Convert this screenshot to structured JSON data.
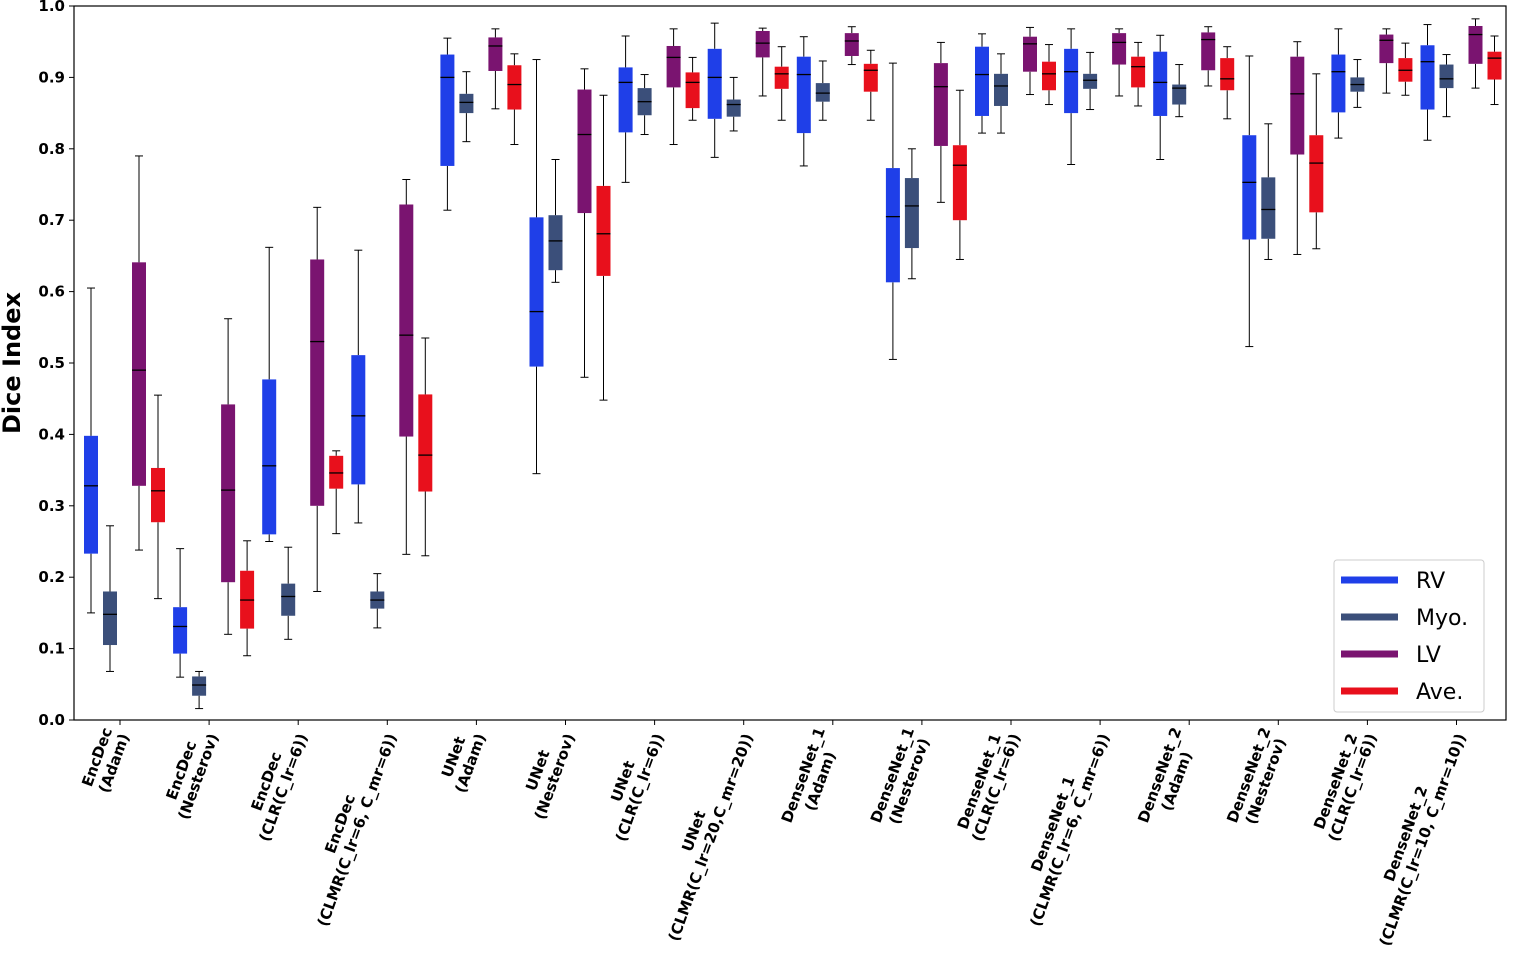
{
  "chart_data": {
    "type": "box",
    "ylabel": "Dice Index",
    "xlabel": "",
    "ylim": [
      0.0,
      1.0
    ],
    "yticks": [
      "0.0",
      "0.1",
      "0.2",
      "0.3",
      "0.4",
      "0.5",
      "0.6",
      "0.7",
      "0.8",
      "0.9",
      "1.0"
    ],
    "grid": false,
    "legend_position": "bottom-right",
    "categories": [
      [
        "EncDec",
        "(Adam)"
      ],
      [
        "EncDec",
        "(Nesterov)"
      ],
      [
        "EncDec",
        "(CLR(C_lr=6))"
      ],
      [
        "EncDec",
        "(CLMR(C_lr=6, C_mr=6))"
      ],
      [
        "UNet",
        "(Adam)"
      ],
      [
        "UNet",
        "(Nesterov)"
      ],
      [
        "UNet",
        "(CLR(C_lr=6))"
      ],
      [
        "UNet",
        "(CLMR(C_lr=20,C_mr=20))"
      ],
      [
        "DenseNet_1",
        "(Adam)"
      ],
      [
        "DenseNet_1",
        "(Nesterov)"
      ],
      [
        "DenseNet_1",
        "(CLR(C_lr=6))"
      ],
      [
        "DenseNet_1",
        "(CLMR(C_lr=6, C_mr=6))"
      ],
      [
        "DenseNet_2",
        "(Adam)"
      ],
      [
        "DenseNet_2",
        "(Nesterov)"
      ],
      [
        "DenseNet_2",
        "(CLR(C_lr=6))"
      ],
      [
        "DenseNet_2",
        "(CLMR(C_lr=10, C_mr=10))"
      ]
    ],
    "series": [
      {
        "name": "RV",
        "color": "#1f3fe8",
        "boxes": [
          {
            "min": 0.15,
            "q1": 0.233,
            "median": 0.328,
            "q3": 0.398,
            "max": 0.605
          },
          {
            "min": 0.06,
            "q1": 0.093,
            "median": 0.131,
            "q3": 0.158,
            "max": 0.24
          },
          {
            "min": 0.25,
            "q1": 0.26,
            "median": 0.356,
            "q3": 0.477,
            "max": 0.662
          },
          {
            "min": 0.276,
            "q1": 0.33,
            "median": 0.426,
            "q3": 0.511,
            "max": 0.658
          },
          {
            "min": 0.714,
            "q1": 0.776,
            "median": 0.9,
            "q3": 0.932,
            "max": 0.955
          },
          {
            "min": 0.345,
            "q1": 0.495,
            "median": 0.572,
            "q3": 0.704,
            "max": 0.925
          },
          {
            "min": 0.753,
            "q1": 0.823,
            "median": 0.893,
            "q3": 0.914,
            "max": 0.958
          },
          {
            "min": 0.788,
            "q1": 0.842,
            "median": 0.9,
            "q3": 0.94,
            "max": 0.976
          },
          {
            "min": 0.776,
            "q1": 0.822,
            "median": 0.904,
            "q3": 0.929,
            "max": 0.957
          },
          {
            "min": 0.505,
            "q1": 0.613,
            "median": 0.705,
            "q3": 0.773,
            "max": 0.92
          },
          {
            "min": 0.822,
            "q1": 0.846,
            "median": 0.904,
            "q3": 0.943,
            "max": 0.961
          },
          {
            "min": 0.778,
            "q1": 0.85,
            "median": 0.908,
            "q3": 0.94,
            "max": 0.968
          },
          {
            "min": 0.785,
            "q1": 0.846,
            "median": 0.893,
            "q3": 0.936,
            "max": 0.959
          },
          {
            "min": 0.523,
            "q1": 0.673,
            "median": 0.753,
            "q3": 0.819,
            "max": 0.93
          },
          {
            "min": 0.815,
            "q1": 0.851,
            "median": 0.908,
            "q3": 0.932,
            "max": 0.968
          },
          {
            "min": 0.812,
            "q1": 0.855,
            "median": 0.922,
            "q3": 0.945,
            "max": 0.974
          }
        ]
      },
      {
        "name": "Myo.",
        "color": "#3b4f7a",
        "boxes": [
          {
            "min": 0.068,
            "q1": 0.105,
            "median": 0.148,
            "q3": 0.18,
            "max": 0.272
          },
          {
            "min": 0.016,
            "q1": 0.034,
            "median": 0.049,
            "q3": 0.061,
            "max": 0.068
          },
          {
            "min": 0.113,
            "q1": 0.146,
            "median": 0.173,
            "q3": 0.191,
            "max": 0.242
          },
          {
            "min": 0.129,
            "q1": 0.156,
            "median": 0.168,
            "q3": 0.18,
            "max": 0.205
          },
          {
            "min": 0.81,
            "q1": 0.85,
            "median": 0.865,
            "q3": 0.877,
            "max": 0.908
          },
          {
            "min": 0.613,
            "q1": 0.63,
            "median": 0.671,
            "q3": 0.707,
            "max": 0.785
          },
          {
            "min": 0.82,
            "q1": 0.847,
            "median": 0.866,
            "q3": 0.885,
            "max": 0.904
          },
          {
            "min": 0.825,
            "q1": 0.845,
            "median": 0.862,
            "q3": 0.869,
            "max": 0.9
          },
          {
            "min": 0.84,
            "q1": 0.866,
            "median": 0.878,
            "q3": 0.892,
            "max": 0.923
          },
          {
            "min": 0.618,
            "q1": 0.661,
            "median": 0.72,
            "q3": 0.759,
            "max": 0.8
          },
          {
            "min": 0.822,
            "q1": 0.86,
            "median": 0.888,
            "q3": 0.905,
            "max": 0.933
          },
          {
            "min": 0.855,
            "q1": 0.884,
            "median": 0.896,
            "q3": 0.905,
            "max": 0.935
          },
          {
            "min": 0.845,
            "q1": 0.862,
            "median": 0.885,
            "q3": 0.89,
            "max": 0.918
          },
          {
            "min": 0.645,
            "q1": 0.674,
            "median": 0.715,
            "q3": 0.76,
            "max": 0.835
          },
          {
            "min": 0.858,
            "q1": 0.88,
            "median": 0.89,
            "q3": 0.9,
            "max": 0.925
          },
          {
            "min": 0.845,
            "q1": 0.885,
            "median": 0.898,
            "q3": 0.918,
            "max": 0.932
          }
        ]
      },
      {
        "name": "LV",
        "color": "#7a1470",
        "boxes": [
          {
            "min": 0.238,
            "q1": 0.328,
            "median": 0.49,
            "q3": 0.641,
            "max": 0.79
          },
          {
            "min": 0.12,
            "q1": 0.193,
            "median": 0.322,
            "q3": 0.442,
            "max": 0.562
          },
          {
            "min": 0.18,
            "q1": 0.3,
            "median": 0.53,
            "q3": 0.645,
            "max": 0.718
          },
          {
            "min": 0.232,
            "q1": 0.397,
            "median": 0.539,
            "q3": 0.722,
            "max": 0.757
          },
          {
            "min": 0.856,
            "q1": 0.909,
            "median": 0.944,
            "q3": 0.956,
            "max": 0.968
          },
          {
            "min": 0.48,
            "q1": 0.71,
            "median": 0.82,
            "q3": 0.883,
            "max": 0.912
          },
          {
            "min": 0.806,
            "q1": 0.886,
            "median": 0.928,
            "q3": 0.944,
            "max": 0.968
          },
          {
            "min": 0.874,
            "q1": 0.928,
            "median": 0.948,
            "q3": 0.965,
            "max": 0.969
          },
          {
            "min": 0.918,
            "q1": 0.93,
            "median": 0.951,
            "q3": 0.962,
            "max": 0.971
          },
          {
            "min": 0.725,
            "q1": 0.804,
            "median": 0.887,
            "q3": 0.92,
            "max": 0.949
          },
          {
            "min": 0.876,
            "q1": 0.908,
            "median": 0.947,
            "q3": 0.957,
            "max": 0.97
          },
          {
            "min": 0.874,
            "q1": 0.918,
            "median": 0.949,
            "q3": 0.962,
            "max": 0.968
          },
          {
            "min": 0.888,
            "q1": 0.91,
            "median": 0.953,
            "q3": 0.963,
            "max": 0.971
          },
          {
            "min": 0.652,
            "q1": 0.792,
            "median": 0.877,
            "q3": 0.929,
            "max": 0.95
          },
          {
            "min": 0.878,
            "q1": 0.92,
            "median": 0.952,
            "q3": 0.96,
            "max": 0.968
          },
          {
            "min": 0.885,
            "q1": 0.919,
            "median": 0.96,
            "q3": 0.972,
            "max": 0.982
          }
        ]
      },
      {
        "name": "Ave.",
        "color": "#e8101c",
        "boxes": [
          {
            "min": 0.17,
            "q1": 0.277,
            "median": 0.321,
            "q3": 0.353,
            "max": 0.455
          },
          {
            "min": 0.09,
            "q1": 0.128,
            "median": 0.168,
            "q3": 0.209,
            "max": 0.251
          },
          {
            "min": 0.261,
            "q1": 0.324,
            "median": 0.346,
            "q3": 0.37,
            "max": 0.377
          },
          {
            "min": 0.23,
            "q1": 0.32,
            "median": 0.371,
            "q3": 0.456,
            "max": 0.535
          },
          {
            "min": 0.806,
            "q1": 0.855,
            "median": 0.89,
            "q3": 0.917,
            "max": 0.933
          },
          {
            "min": 0.448,
            "q1": 0.622,
            "median": 0.681,
            "q3": 0.748,
            "max": 0.875
          },
          {
            "min": 0.84,
            "q1": 0.857,
            "median": 0.893,
            "q3": 0.907,
            "max": 0.928
          },
          {
            "min": 0.84,
            "q1": 0.884,
            "median": 0.905,
            "q3": 0.915,
            "max": 0.943
          },
          {
            "min": 0.84,
            "q1": 0.88,
            "median": 0.91,
            "q3": 0.919,
            "max": 0.938
          },
          {
            "min": 0.645,
            "q1": 0.7,
            "median": 0.777,
            "q3": 0.805,
            "max": 0.882
          },
          {
            "min": 0.862,
            "q1": 0.882,
            "median": 0.905,
            "q3": 0.922,
            "max": 0.946
          },
          {
            "min": 0.86,
            "q1": 0.886,
            "median": 0.915,
            "q3": 0.929,
            "max": 0.949
          },
          {
            "min": 0.842,
            "q1": 0.882,
            "median": 0.898,
            "q3": 0.927,
            "max": 0.943
          },
          {
            "min": 0.66,
            "q1": 0.711,
            "median": 0.78,
            "q3": 0.819,
            "max": 0.905
          },
          {
            "min": 0.875,
            "q1": 0.894,
            "median": 0.91,
            "q3": 0.927,
            "max": 0.948
          },
          {
            "min": 0.862,
            "q1": 0.897,
            "median": 0.927,
            "q3": 0.936,
            "max": 0.958
          }
        ]
      }
    ]
  }
}
